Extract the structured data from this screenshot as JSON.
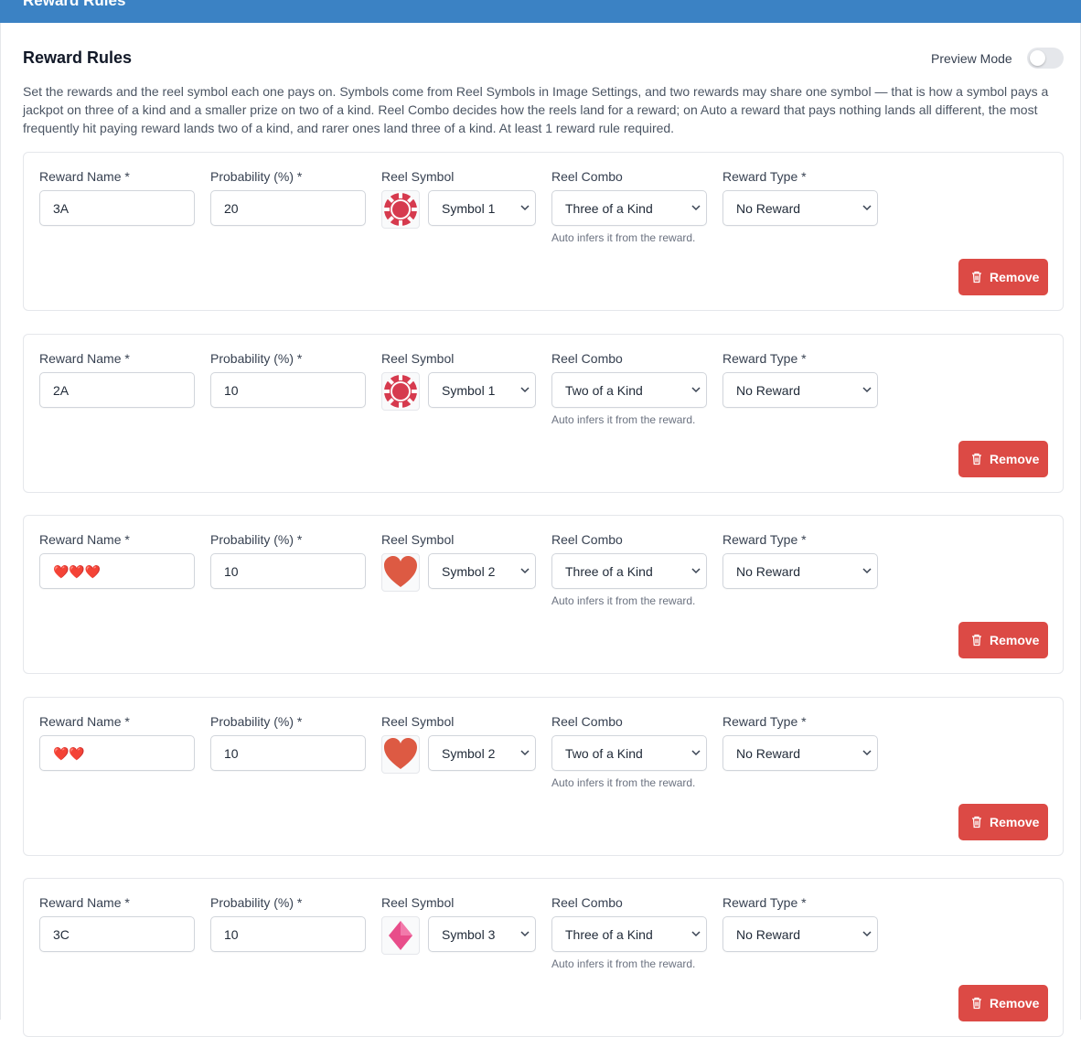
{
  "header": {
    "title": "Reward Rules"
  },
  "section": {
    "title": "Reward Rules",
    "preview_label": "Preview Mode",
    "description": "Set the rewards and the reel symbol each one pays on. Symbols come from Reel Symbols in Image Settings, and two rewards may share one symbol — that is how a symbol pays a jackpot on three of a kind and a smaller prize on two of a kind. Reel Combo decides how the reels land for a reward; on Auto a reward that pays nothing lands all different, the most frequently hit paying reward lands two of a kind, and rarer ones land three of a kind. At least 1 reward rule required."
  },
  "field_labels": {
    "name": "Reward Name *",
    "probability": "Probability (%) *",
    "symbol": "Reel Symbol",
    "combo": "Reel Combo",
    "type": "Reward Type *"
  },
  "combo_hint": "Auto infers it from the reward.",
  "remove_label": "Remove",
  "rules": [
    {
      "name": "3A",
      "probability": 20,
      "symbol": "Symbol 1",
      "combo": "Three of a Kind",
      "type": "No Reward"
    },
    {
      "name": "2A",
      "probability": 10,
      "symbol": "Symbol 1",
      "combo": "Two of a Kind",
      "type": "No Reward"
    },
    {
      "name": "❤️❤️❤️",
      "probability": 10,
      "symbol": "Symbol 2",
      "combo": "Three of a Kind",
      "type": "No Reward"
    },
    {
      "name": "❤️❤️",
      "probability": 10,
      "symbol": "Symbol 2",
      "combo": "Two of a Kind",
      "type": "No Reward"
    },
    {
      "name": "3C",
      "probability": 10,
      "symbol": "Symbol 3",
      "combo": "Three of a Kind",
      "type": "No Reward"
    }
  ]
}
